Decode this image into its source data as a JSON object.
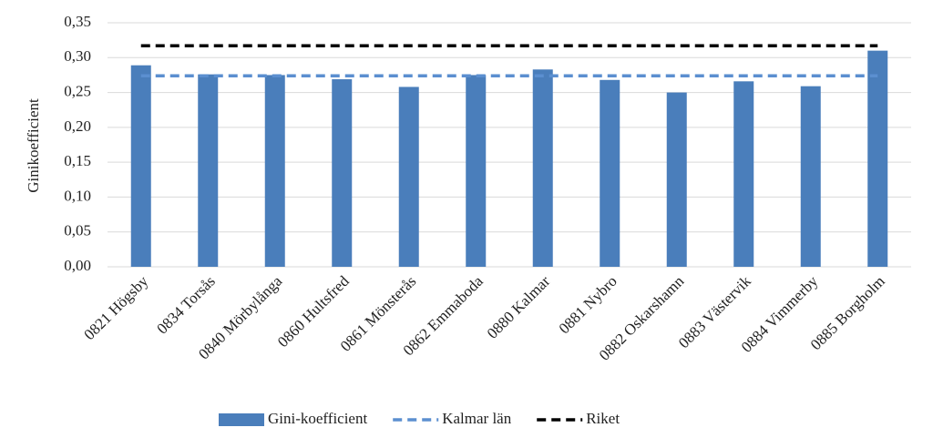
{
  "chart_data": {
    "type": "bar",
    "y_label": "Ginikoefficient",
    "categories": [
      "0821 Högsby",
      "0834 Torsås",
      "0840 Mörbylånga",
      "0860 Hultsfred",
      "0861 Mönsterås",
      "0862 Emmaboda",
      "0880 Kalmar",
      "0881 Nybro",
      "0882 Oskarshamn",
      "0883 Västervik",
      "0884 Vimmerby",
      "0885 Borgholm"
    ],
    "series": [
      {
        "name": "Gini-koefficient",
        "type": "bar",
        "color": "#4a7ebb",
        "values": [
          0.289,
          0.276,
          0.275,
          0.269,
          0.258,
          0.275,
          0.283,
          0.268,
          0.25,
          0.266,
          0.259,
          0.31
        ]
      },
      {
        "name": "Kalmar län",
        "type": "line",
        "color": "#5b8fd0",
        "dashed": true,
        "values": [
          0.274,
          0.274,
          0.274,
          0.274,
          0.274,
          0.274,
          0.274,
          0.274,
          0.274,
          0.274,
          0.274,
          0.274
        ]
      },
      {
        "name": "Riket",
        "type": "line",
        "color": "#000000",
        "dashed": true,
        "values": [
          0.317,
          0.317,
          0.317,
          0.317,
          0.317,
          0.317,
          0.317,
          0.317,
          0.317,
          0.317,
          0.317,
          0.317
        ]
      }
    ],
    "ylim": [
      0,
      0.35
    ],
    "yticks": [
      {
        "value": 0,
        "label": "0,00"
      },
      {
        "value": 0.05,
        "label": "0,05"
      },
      {
        "value": 0.1,
        "label": "0,10"
      },
      {
        "value": 0.15,
        "label": "0,15"
      },
      {
        "value": 0.2,
        "label": "0,20"
      },
      {
        "value": 0.25,
        "label": "0,25"
      },
      {
        "value": 0.3,
        "label": "0,30"
      },
      {
        "value": 0.35,
        "label": "0,35"
      }
    ],
    "grid": true,
    "legend": "bottom"
  }
}
